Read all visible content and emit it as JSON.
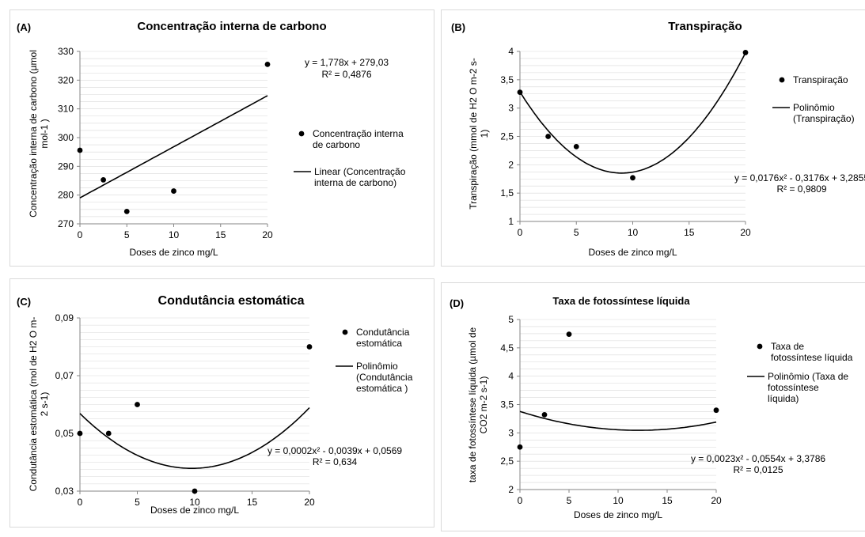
{
  "colors": {
    "series": "#000000",
    "grid": "#d9d9d9",
    "axis": "#868686",
    "border": "#d9d9d9"
  },
  "chart_data": [
    {
      "type": "scatter",
      "panel_label": "(A)",
      "title": "Concentração interna de carbono",
      "xlabel": "Doses de zinco mg/L",
      "ylabel": "Concentração interna de carbono (µmol mol-1 )",
      "xlim": [
        0,
        20
      ],
      "xticks": [
        0,
        5,
        10,
        15,
        20
      ],
      "xtick_labels": [
        "0",
        "5",
        "10",
        "15",
        "20"
      ],
      "ylim": [
        270,
        330
      ],
      "yticks": [
        270,
        280,
        290,
        300,
        310,
        320,
        330
      ],
      "ytick_labels": [
        "270",
        "280",
        "290",
        "300",
        "310",
        "320",
        "330"
      ],
      "grid": "horizontal minor",
      "legend_position": "right",
      "series": [
        {
          "name": "Concentração interna de carbono",
          "kind": "points",
          "x": [
            0,
            2.5,
            5,
            10,
            20
          ],
          "y": [
            295.6,
            285.3,
            274.3,
            281.4,
            325.5
          ]
        },
        {
          "name": "Linear (Concentração interna de carbono)",
          "kind": "trendline",
          "coefficients": [
            0,
            1.778,
            279.03
          ]
        }
      ],
      "equation": "y = 1,778x + 279,03",
      "r2": "R² = 0,4876"
    },
    {
      "type": "scatter",
      "panel_label": "(B)",
      "title": "Transpiração",
      "xlabel": "Doses de zinco mg/L",
      "ylabel": "Transpiração (mmol de H2 O m-2 s-1)",
      "xlim": [
        0,
        20
      ],
      "xticks": [
        0,
        5,
        10,
        15,
        20
      ],
      "xtick_labels": [
        "0",
        "5",
        "10",
        "15",
        "20"
      ],
      "ylim": [
        1,
        4
      ],
      "yticks": [
        1,
        1.5,
        2,
        2.5,
        3,
        3.5,
        4
      ],
      "ytick_labels": [
        "1",
        "1,5",
        "2",
        "2,5",
        "3",
        "3,5",
        "4"
      ],
      "grid": "horizontal minor",
      "legend_position": "right",
      "series": [
        {
          "name": "Transpiração",
          "kind": "points",
          "x": [
            0,
            2.5,
            5,
            10,
            20
          ],
          "y": [
            3.28,
            2.5,
            2.32,
            1.77,
            3.98
          ]
        },
        {
          "name": "Polinômio (Transpiração)",
          "kind": "trendline",
          "coefficients": [
            0.0176,
            -0.3176,
            3.2855
          ]
        }
      ],
      "equation": "y = 0,0176x² - 0,3176x + 3,2855",
      "r2": "R² = 0,9809"
    },
    {
      "type": "scatter",
      "panel_label": "(C)",
      "title": "Condutância estomática",
      "xlabel": "Doses de zinco mg/L",
      "ylabel": "Condutância estomática (mol de H2 O m-2 s-1)",
      "xlim": [
        0,
        20
      ],
      "xticks": [
        0,
        5,
        10,
        15,
        20
      ],
      "xtick_labels": [
        "0",
        "5",
        "10",
        "15",
        "20"
      ],
      "ylim": [
        0.03,
        0.09
      ],
      "yticks": [
        0.03,
        0.05,
        0.07,
        0.09
      ],
      "ytick_labels": [
        "0,03",
        "0,05",
        "0,07",
        "0,09"
      ],
      "grid": "horizontal minor",
      "legend_position": "right",
      "series": [
        {
          "name": "Condutância estomática",
          "kind": "points",
          "x": [
            0,
            2.5,
            5,
            10,
            20
          ],
          "y": [
            0.05,
            0.05,
            0.06,
            0.03,
            0.08
          ]
        },
        {
          "name": "Polinômio (Condutância estomática )",
          "kind": "trendline",
          "coefficients": [
            0.0002,
            -0.0039,
            0.0569
          ]
        }
      ],
      "equation": "y = 0,0002x² - 0,0039x + 0,0569",
      "r2": "R² = 0,634"
    },
    {
      "type": "scatter",
      "panel_label": "(D)",
      "title": "Taxa de fotossíntese líquida",
      "xlabel": "Doses de zinco mg/L",
      "ylabel": "taxa de fotossíntese líquida (µmol de CO2 m-2 s-1)",
      "xlim": [
        0,
        20
      ],
      "xticks": [
        0,
        5,
        10,
        15,
        20
      ],
      "xtick_labels": [
        "0",
        "5",
        "10",
        "15",
        "20"
      ],
      "ylim": [
        2,
        5
      ],
      "yticks": [
        2,
        2.5,
        3,
        3.5,
        4,
        4.5,
        5
      ],
      "ytick_labels": [
        "2",
        "2,5",
        "3",
        "3,5",
        "4",
        "4,5",
        "5"
      ],
      "grid": "horizontal minor",
      "legend_position": "right",
      "series": [
        {
          "name": "Taxa de fotossíntese líquida",
          "kind": "points",
          "x": [
            0,
            2.5,
            5,
            20
          ],
          "y": [
            2.75,
            3.32,
            4.74,
            3.4
          ]
        },
        {
          "name": "Polinômio (Taxa de fotossíntese líquida)",
          "kind": "trendline",
          "coefficients": [
            0.0023,
            -0.0554,
            3.3786
          ]
        }
      ],
      "equation": "y = 0,0023x² - 0,0554x + 3,3786",
      "r2": "R² = 0,0125"
    }
  ]
}
